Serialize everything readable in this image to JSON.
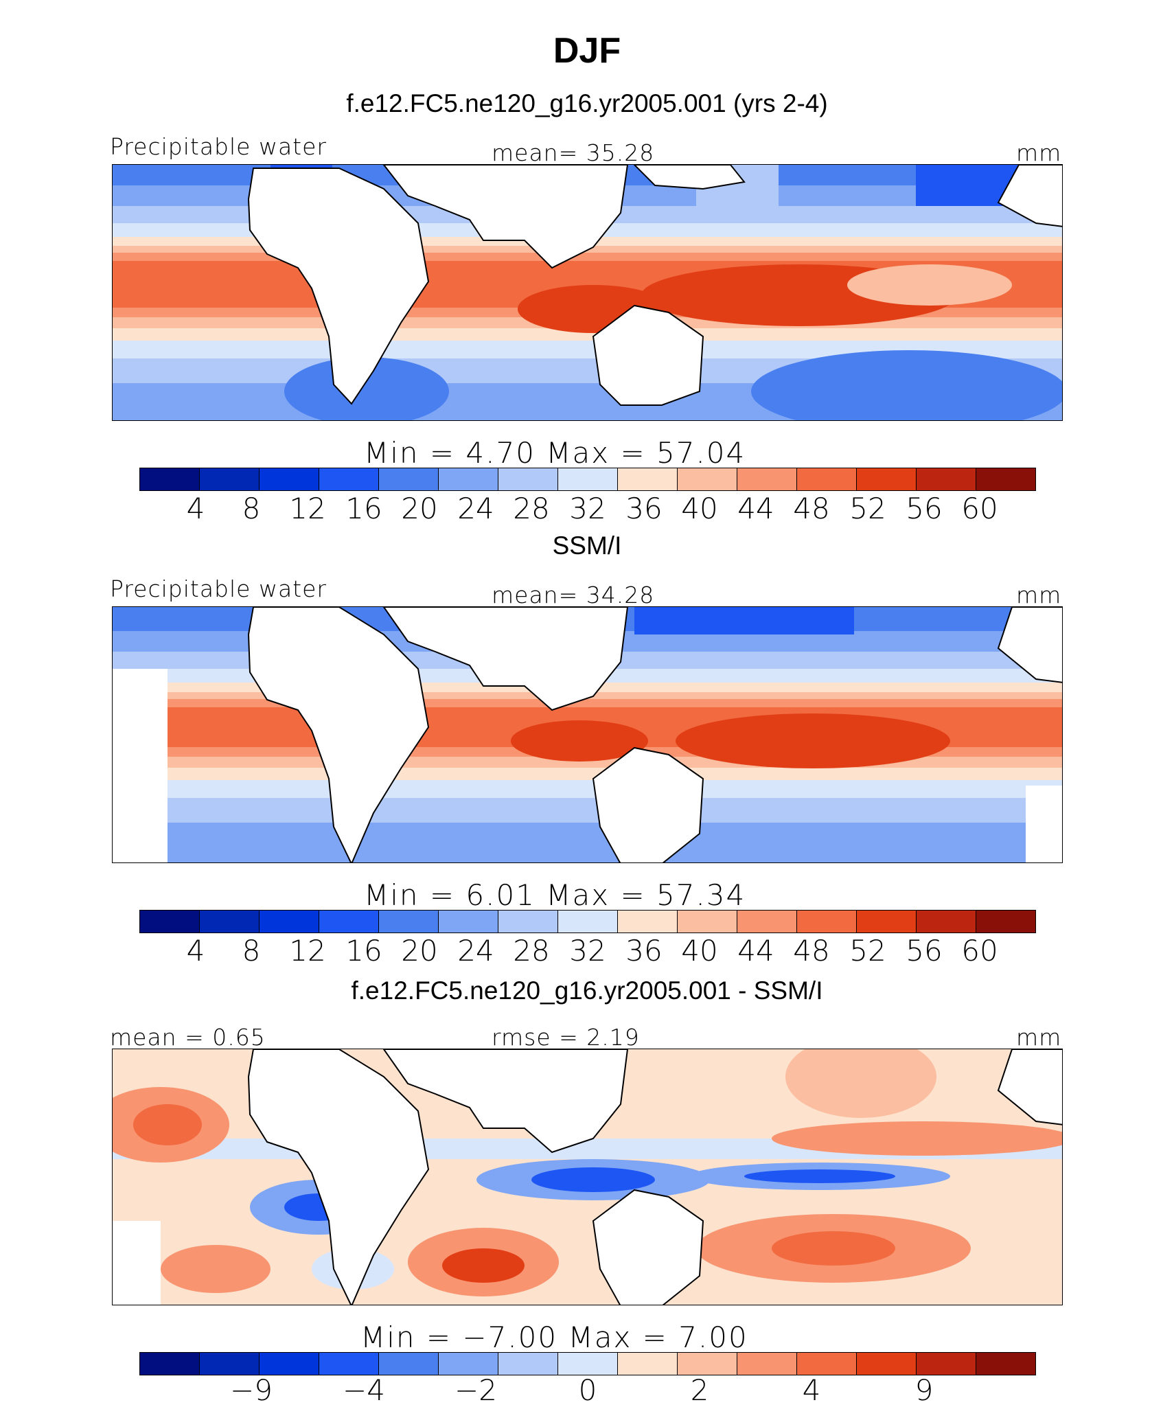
{
  "figure": {
    "title": "DJF"
  },
  "colors": {
    "scale": [
      "#000e80",
      "#0028b4",
      "#0035dc",
      "#1e56f4",
      "#4a7ff0",
      "#7ea6f4",
      "#b0c9f8",
      "#d8e6fc",
      "#fde2ce",
      "#fbbea0",
      "#f89470",
      "#f26a40",
      "#e23e15",
      "#bc2510",
      "#881008"
    ],
    "land": "#ffffff"
  },
  "panels": [
    {
      "title": "f.e12.FC5.ne120_g16.yr2005.001 (yrs 2-4)",
      "left_label": "Precipitable water",
      "center_label": "mean=   35.28",
      "units": "mm",
      "range_label": "Min  =    4.70  Max  =    57.04",
      "ticks": [
        "4",
        "8",
        "12",
        "16",
        "20",
        "24",
        "28",
        "32",
        "36",
        "40",
        "44",
        "48",
        "52",
        "56",
        "60"
      ]
    },
    {
      "title": "SSM/I",
      "left_label": "Precipitable water",
      "center_label": "mean=   34.28",
      "units": "mm",
      "range_label": "Min  =    6.01  Max  =    57.34",
      "ticks": [
        "4",
        "8",
        "12",
        "16",
        "20",
        "24",
        "28",
        "32",
        "36",
        "40",
        "44",
        "48",
        "52",
        "56",
        "60"
      ]
    },
    {
      "title": "f.e12.FC5.ne120_g16.yr2005.001 - SSM/I",
      "left_label": "mean =    0.65",
      "center_label": "rmse =    2.19",
      "units": "mm",
      "range_label": "Min  =   −7.00  Max  =     7.00",
      "ticks": [
        "−9",
        "−4",
        "−2",
        "0",
        "2",
        "4",
        "9"
      ]
    }
  ]
}
